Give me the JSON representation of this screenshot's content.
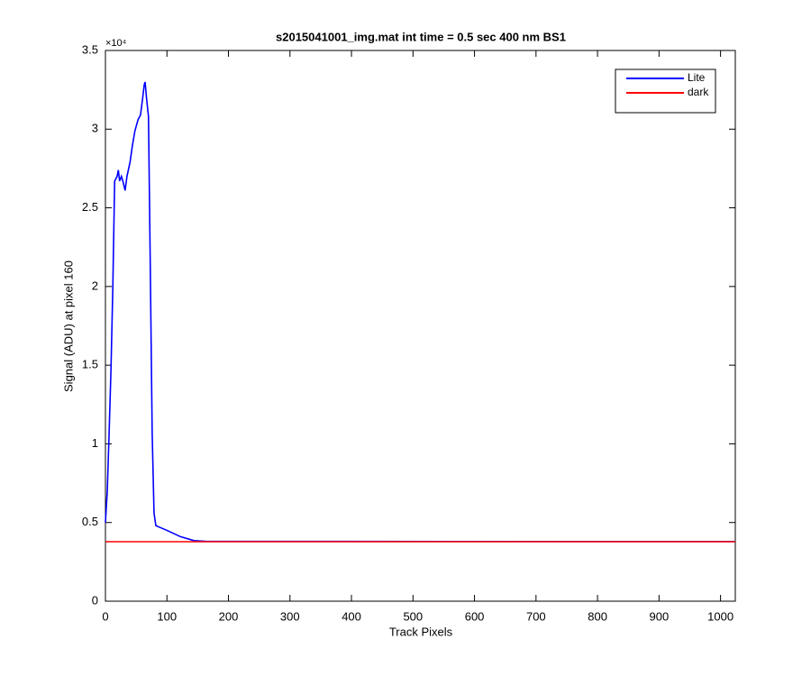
{
  "chart_data": {
    "type": "line",
    "title": "s2015041001_img.mat int time = 0.5 sec  400 nm BS1",
    "xlabel": "Track Pixels",
    "ylabel": "Signal (ADU) at pixel 160",
    "y_exponent_label": "×10⁴",
    "xlim": [
      0,
      1024
    ],
    "xticks": [
      0,
      100,
      200,
      300,
      400,
      500,
      600,
      700,
      800,
      900,
      1000
    ],
    "ylim": [
      0,
      35000
    ],
    "yticks": [
      {
        "value": 0,
        "label": "0"
      },
      {
        "value": 5000,
        "label": "0.5"
      },
      {
        "value": 10000,
        "label": "1"
      },
      {
        "value": 15000,
        "label": "1.5"
      },
      {
        "value": 20000,
        "label": "2"
      },
      {
        "value": 25000,
        "label": "2.5"
      },
      {
        "value": 30000,
        "label": "3"
      },
      {
        "value": 35000,
        "label": "3.5"
      }
    ],
    "grid": false,
    "legend_position": "northeast",
    "series": [
      {
        "name": "Lite",
        "color": "#0000ff",
        "x": [
          0,
          3,
          6,
          9,
          12,
          15,
          19,
          21,
          23,
          26,
          29,
          32,
          35,
          40,
          44,
          48,
          53,
          57,
          60,
          63,
          64.5,
          67,
          70,
          73,
          76,
          79,
          82,
          100,
          122,
          144,
          165,
          1024
        ],
        "values": [
          5000,
          7000,
          10700,
          14700,
          19900,
          26700,
          27000,
          27400,
          26700,
          27000,
          26600,
          26100,
          27000,
          27900,
          29000,
          29900,
          30600,
          30900,
          31800,
          32800,
          33000,
          31900,
          30800,
          21000,
          10700,
          5600,
          4800,
          4500,
          4100,
          3850,
          3800,
          3790
        ]
      },
      {
        "name": "dark",
        "color": "#ff0000",
        "x": [
          0,
          1024
        ],
        "values": [
          3780,
          3780
        ]
      }
    ]
  }
}
